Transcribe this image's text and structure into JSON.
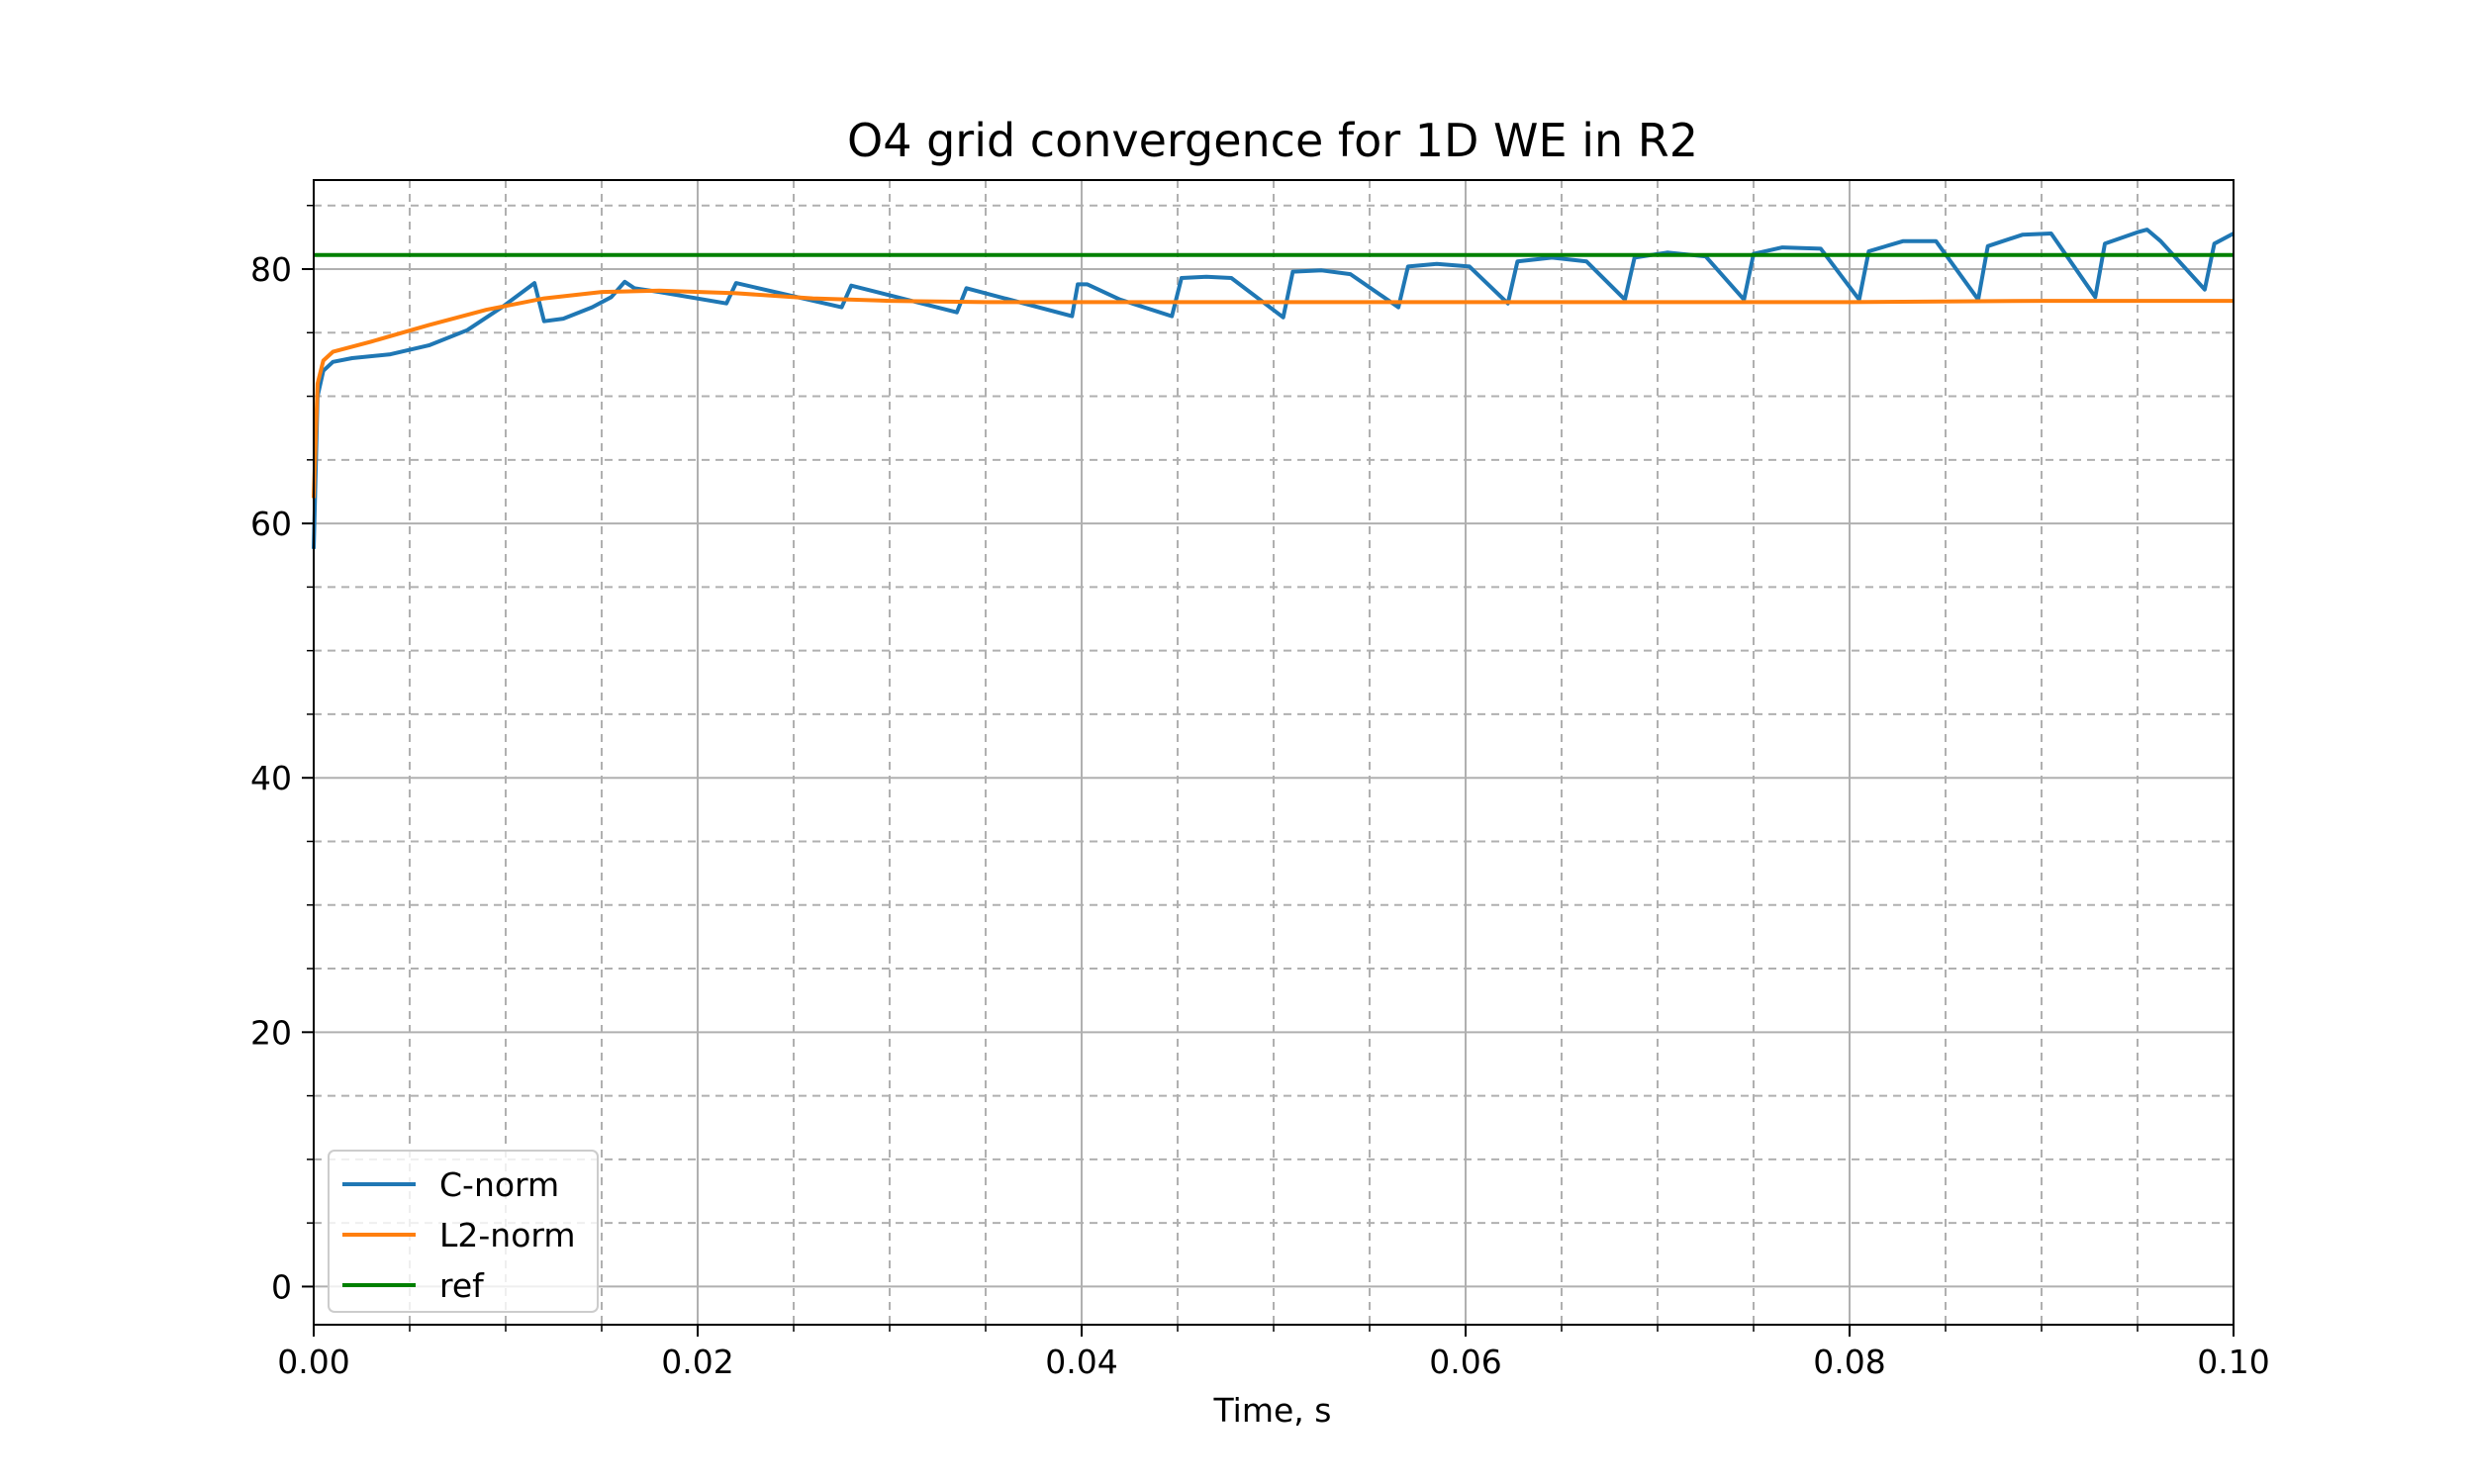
{
  "chart_data": {
    "type": "line",
    "title": "O4 grid convergence for 1D WE in R2",
    "xlabel": "Time, s",
    "ylabel": "",
    "xlim": [
      0.0,
      0.1
    ],
    "ylim": [
      -3,
      87
    ],
    "x_ticks": [
      "0.00",
      "0.02",
      "0.04",
      "0.06",
      "0.08",
      "0.10"
    ],
    "y_ticks": [
      "0",
      "20",
      "40",
      "60",
      "80"
    ],
    "grid": {
      "major": true,
      "minor": true,
      "minor_style": "dashed"
    },
    "legend": {
      "position": "lower-left"
    },
    "series": [
      {
        "name": "C-norm",
        "color": "#1f77b4",
        "points": [
          [
            0.0,
            58
          ],
          [
            0.0002,
            70
          ],
          [
            0.0005,
            72
          ],
          [
            0.001,
            72.7
          ],
          [
            0.002,
            73
          ],
          [
            0.004,
            73.3
          ],
          [
            0.006,
            74
          ],
          [
            0.008,
            75.2
          ],
          [
            0.0098,
            77
          ],
          [
            0.0115,
            78.9
          ],
          [
            0.012,
            75.9
          ],
          [
            0.013,
            76.1
          ],
          [
            0.0145,
            77
          ],
          [
            0.0155,
            77.8
          ],
          [
            0.0162,
            79
          ],
          [
            0.0167,
            78.5
          ],
          [
            0.018,
            78.2
          ],
          [
            0.0215,
            77.3
          ],
          [
            0.022,
            78.9
          ],
          [
            0.0275,
            77
          ],
          [
            0.028,
            78.7
          ],
          [
            0.0335,
            76.6
          ],
          [
            0.034,
            78.5
          ],
          [
            0.0395,
            76.3
          ],
          [
            0.0398,
            78.8
          ],
          [
            0.0403,
            78.8
          ],
          [
            0.042,
            77.6
          ],
          [
            0.0447,
            76.3
          ],
          [
            0.0452,
            79.3
          ],
          [
            0.0465,
            79.4
          ],
          [
            0.0478,
            79.3
          ],
          [
            0.0505,
            76.2
          ],
          [
            0.051,
            79.8
          ],
          [
            0.0525,
            79.9
          ],
          [
            0.054,
            79.6
          ],
          [
            0.0565,
            77
          ],
          [
            0.057,
            80.2
          ],
          [
            0.0585,
            80.4
          ],
          [
            0.0602,
            80.2
          ],
          [
            0.0622,
            77.3
          ],
          [
            0.0627,
            80.6
          ],
          [
            0.0645,
            80.9
          ],
          [
            0.0663,
            80.6
          ],
          [
            0.0683,
            77.6
          ],
          [
            0.0688,
            80.9
          ],
          [
            0.0705,
            81.3
          ],
          [
            0.0725,
            81
          ],
          [
            0.0745,
            77.6
          ],
          [
            0.075,
            81.2
          ],
          [
            0.0765,
            81.7
          ],
          [
            0.0785,
            81.6
          ],
          [
            0.0805,
            77.6
          ],
          [
            0.081,
            81.4
          ],
          [
            0.0828,
            82.2
          ],
          [
            0.0845,
            82.2
          ],
          [
            0.0867,
            77.6
          ],
          [
            0.0872,
            81.8
          ],
          [
            0.089,
            82.7
          ],
          [
            0.0905,
            82.8
          ],
          [
            0.0928,
            77.8
          ],
          [
            0.0933,
            82
          ],
          [
            0.095,
            82.9
          ],
          [
            0.0955,
            83.1
          ],
          [
            0.0962,
            82.2
          ],
          [
            0.0985,
            78.4
          ],
          [
            0.099,
            82
          ],
          [
            0.1,
            82.8
          ]
        ]
      },
      {
        "name": "L2-norm",
        "color": "#ff7f0e",
        "points": [
          [
            0.0,
            62
          ],
          [
            0.0002,
            71
          ],
          [
            0.0005,
            72.8
          ],
          [
            0.001,
            73.5
          ],
          [
            0.003,
            74.3
          ],
          [
            0.006,
            75.6
          ],
          [
            0.009,
            76.8
          ],
          [
            0.012,
            77.7
          ],
          [
            0.015,
            78.2
          ],
          [
            0.018,
            78.3
          ],
          [
            0.022,
            78.1
          ],
          [
            0.026,
            77.7
          ],
          [
            0.03,
            77.5
          ],
          [
            0.035,
            77.4
          ],
          [
            0.04,
            77.4
          ],
          [
            0.05,
            77.4
          ],
          [
            0.06,
            77.4
          ],
          [
            0.07,
            77.4
          ],
          [
            0.08,
            77.4
          ],
          [
            0.09,
            77.5
          ],
          [
            0.1,
            77.5
          ]
        ]
      },
      {
        "name": "ref",
        "color": "#008000",
        "points": [
          [
            0.0,
            81.1
          ],
          [
            0.1,
            81.1
          ]
        ]
      }
    ]
  }
}
